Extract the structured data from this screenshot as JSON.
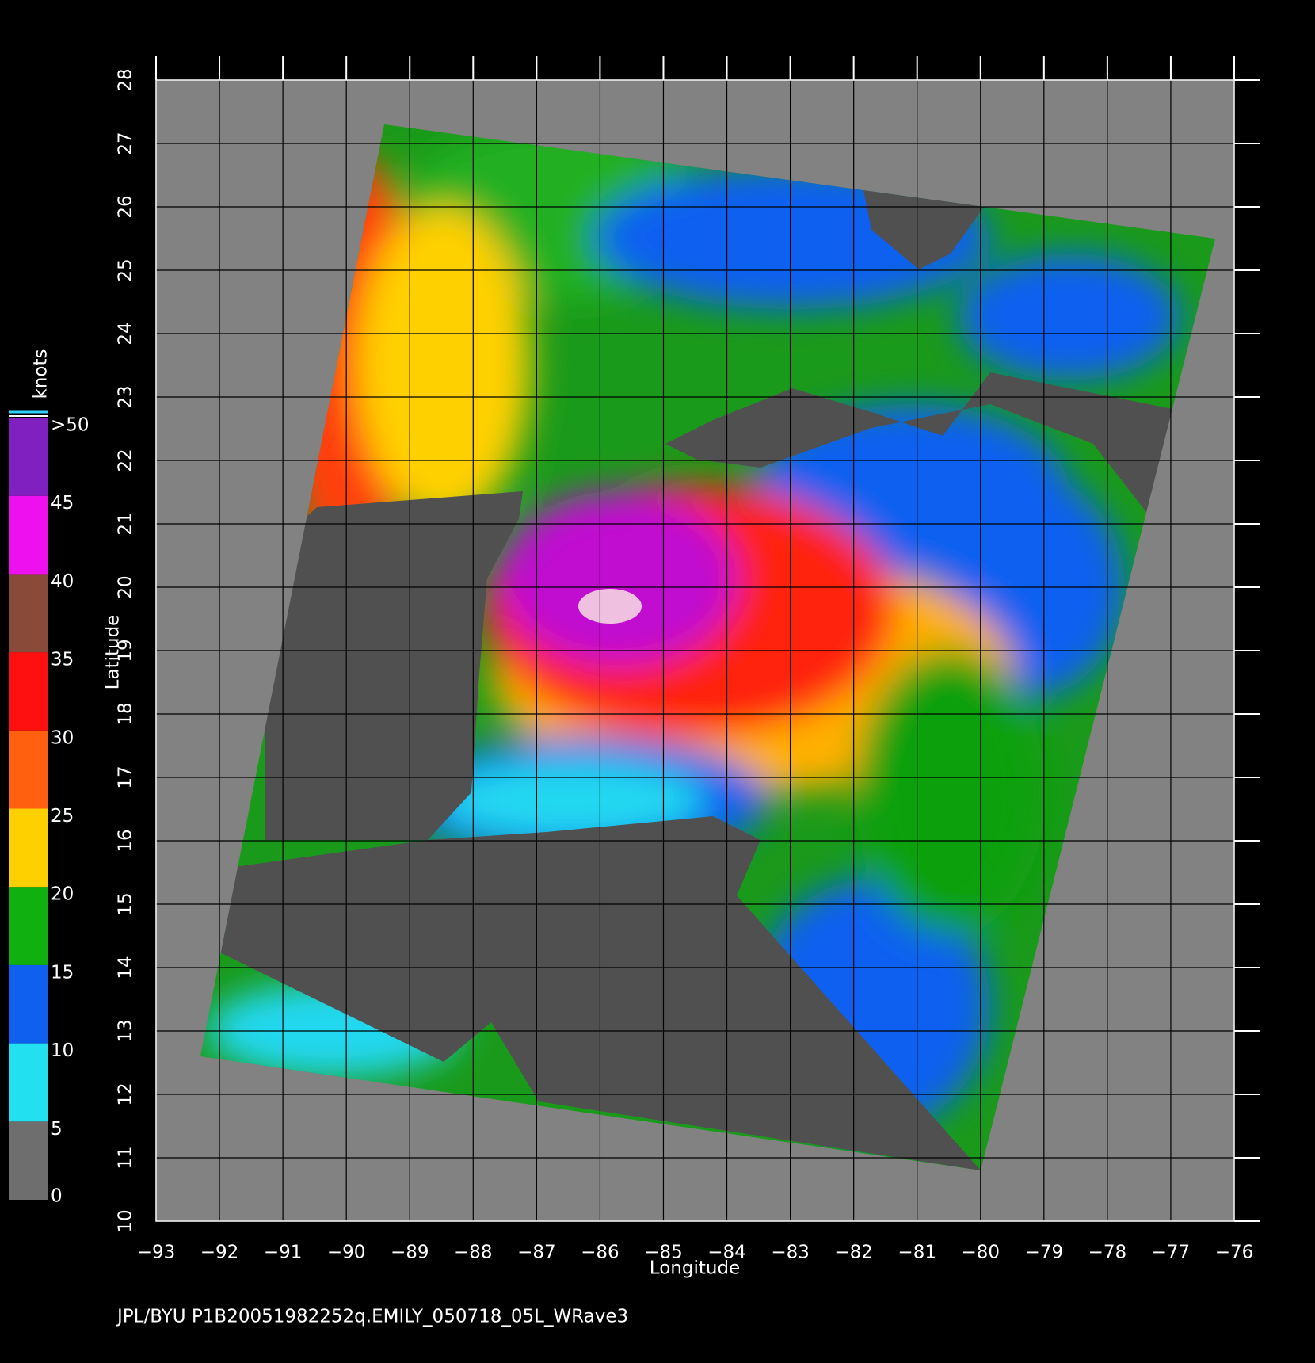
{
  "map": {
    "xlabel": "Longitude",
    "ylabel": "Latitude",
    "xlim": [
      -93,
      -76
    ],
    "ylim": [
      10,
      28
    ],
    "xticks": [
      {
        "value": -93,
        "label": "−93"
      },
      {
        "value": -92,
        "label": "−92"
      },
      {
        "value": -91,
        "label": "−91"
      },
      {
        "value": -90,
        "label": "−90"
      },
      {
        "value": -89,
        "label": "−89"
      },
      {
        "value": -88,
        "label": "−88"
      },
      {
        "value": -87,
        "label": "−87"
      },
      {
        "value": -86,
        "label": "−86"
      },
      {
        "value": -85,
        "label": "−85"
      },
      {
        "value": -84,
        "label": "−84"
      },
      {
        "value": -83,
        "label": "−83"
      },
      {
        "value": -82,
        "label": "−82"
      },
      {
        "value": -81,
        "label": "−81"
      },
      {
        "value": -80,
        "label": "−80"
      },
      {
        "value": -79,
        "label": "−79"
      },
      {
        "value": -78,
        "label": "−78"
      },
      {
        "value": -77,
        "label": "−77"
      },
      {
        "value": -76,
        "label": "−76"
      }
    ],
    "yticks": [
      10,
      11,
      12,
      13,
      14,
      15,
      16,
      17,
      18,
      19,
      20,
      21,
      22,
      23,
      24,
      25,
      26,
      27,
      28
    ],
    "colorbar": {
      "title": "knots",
      "ticks": [
        0,
        5,
        10,
        15,
        20,
        25,
        30,
        35,
        40,
        45,
        {
          "value": 50,
          "label": ">50"
        }
      ],
      "colors": [
        "#6e6e6e",
        "#22e0f0",
        "#1060f0",
        "#10b010",
        "#ffd000",
        "#ff6010",
        "#ff1010",
        "#8a4a3a",
        "#ee10ee",
        "#8020c0"
      ]
    },
    "footer": "JPL/BYU  P1B20051982252q.EMILY_050718_05L_WRave3"
  }
}
